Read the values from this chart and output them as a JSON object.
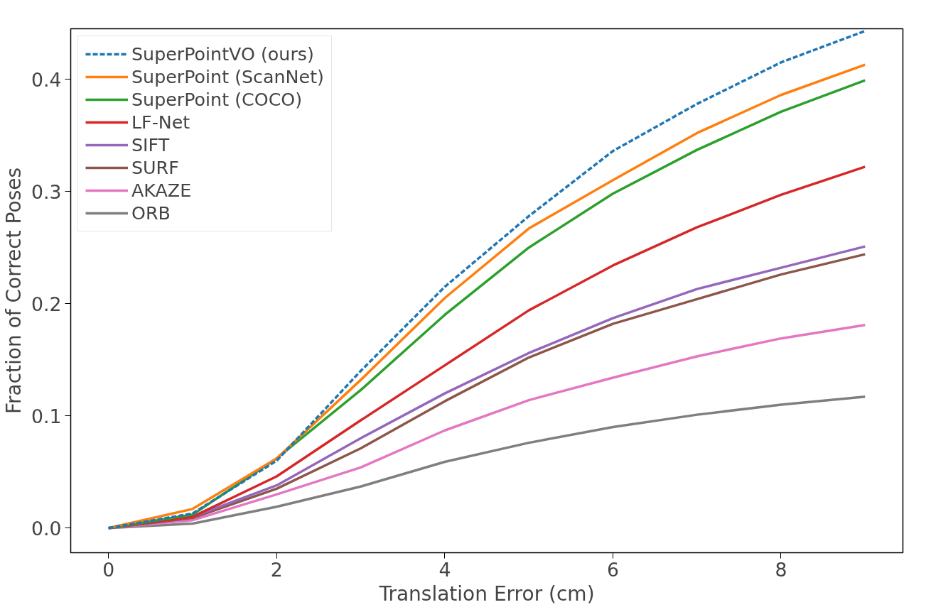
{
  "chart_data": {
    "type": "line",
    "xlabel": "Translation Error (cm)",
    "ylabel": "Fraction of Correct Poses",
    "x": [
      0,
      1,
      2,
      3,
      4,
      5,
      6,
      7,
      8,
      9
    ],
    "xlim": [
      -0.45,
      9.45
    ],
    "ylim": [
      -0.022,
      0.445
    ],
    "xticks": [
      0,
      2,
      4,
      6,
      8
    ],
    "yticks": [
      {
        "value": 0,
        "label": "0.0"
      },
      0.1,
      0.2,
      0.3,
      0.4
    ],
    "grid": false,
    "legend": "top left",
    "marker": "none",
    "series": [
      {
        "name": "SuperPointVO (ours)",
        "color": "#1f77b4",
        "line_style": "dashed",
        "values": [
          0,
          0.013,
          0.06,
          0.14,
          0.215,
          0.278,
          0.336,
          0.378,
          0.415,
          0.443
        ]
      },
      {
        "name": "SuperPoint (ScanNet)",
        "color": "#ff7f0e",
        "values": [
          0,
          0.017,
          0.062,
          0.132,
          0.205,
          0.267,
          0.31,
          0.352,
          0.386,
          0.413
        ]
      },
      {
        "name": "SuperPoint (COCO)",
        "color": "#2ca02c",
        "values": [
          0,
          0.012,
          0.062,
          0.123,
          0.19,
          0.25,
          0.298,
          0.337,
          0.371,
          0.399
        ]
      },
      {
        "name": "LF-Net",
        "color": "#d62728",
        "values": [
          0,
          0.01,
          0.046,
          0.096,
          0.145,
          0.194,
          0.234,
          0.268,
          0.297,
          0.322
        ]
      },
      {
        "name": "SIFT",
        "color": "#9467bd",
        "values": [
          0,
          0.01,
          0.038,
          0.08,
          0.12,
          0.156,
          0.187,
          0.213,
          0.232,
          0.251
        ]
      },
      {
        "name": "SURF",
        "color": "#8c564b",
        "values": [
          0,
          0.009,
          0.035,
          0.071,
          0.113,
          0.152,
          0.182,
          0.204,
          0.226,
          0.244
        ]
      },
      {
        "name": "AKAZE",
        "color": "#e377c2",
        "values": [
          0,
          0.007,
          0.03,
          0.054,
          0.087,
          0.114,
          0.134,
          0.153,
          0.169,
          0.181
        ]
      },
      {
        "name": "ORB",
        "color": "#7f7f7f",
        "values": [
          0,
          0.004,
          0.019,
          0.037,
          0.059,
          0.076,
          0.09,
          0.101,
          0.11,
          0.117
        ]
      }
    ]
  }
}
